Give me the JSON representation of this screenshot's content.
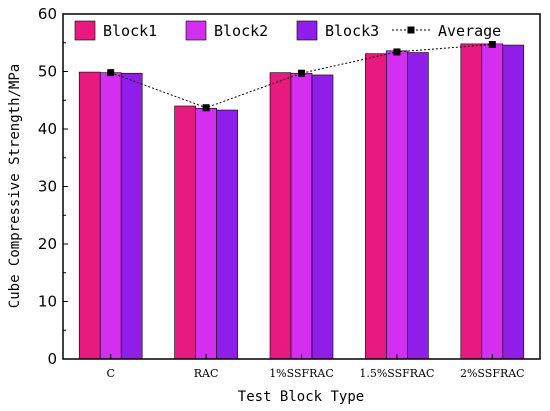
{
  "chart_data": {
    "type": "bar",
    "categories": [
      "C",
      "RAC",
      "1%SSFRAC",
      "1.5%SSFRAC",
      "2%SSFRAC"
    ],
    "series": [
      {
        "name": "Block1",
        "values": [
          49.9,
          44.0,
          49.8,
          53.1,
          54.8
        ],
        "color": "#e8197f"
      },
      {
        "name": "Block2",
        "values": [
          49.8,
          43.6,
          49.7,
          53.6,
          54.8
        ],
        "color": "#d42ff0"
      },
      {
        "name": "Block3",
        "values": [
          49.7,
          43.3,
          49.4,
          53.3,
          54.6
        ],
        "color": "#8f1fe8"
      }
    ],
    "average": {
      "name": "Average",
      "values": [
        49.8,
        43.7,
        49.7,
        53.4,
        54.7
      ],
      "color": "#000000",
      "style": "dashed-line-square-markers"
    },
    "xlabel": "Test Block Type",
    "ylabel": "Cube Compressive Strength/MPa",
    "ylim": [
      0,
      60
    ],
    "yticks": [
      0,
      10,
      20,
      30,
      40,
      50,
      60
    ],
    "grid": false,
    "legend": "top, horizontal"
  }
}
